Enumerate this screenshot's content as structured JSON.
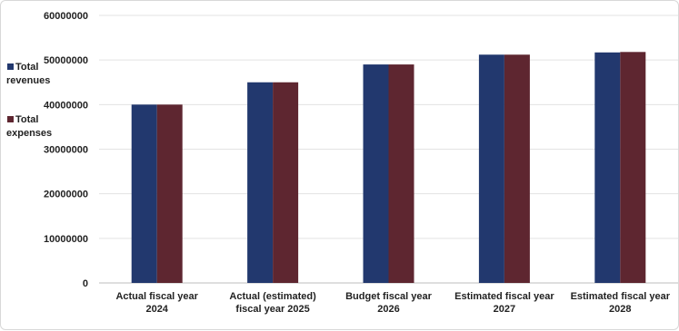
{
  "chart_data": {
    "type": "bar",
    "categories": [
      [
        "Actual fiscal year",
        "2024"
      ],
      [
        "Actual (estimated)",
        "fiscal year 2025"
      ],
      [
        "Budget fiscal year",
        "2026"
      ],
      [
        "Estimated fiscal year",
        "2027"
      ],
      [
        "Estimated fiscal year",
        "2028"
      ]
    ],
    "series": [
      {
        "name": "Total revenues",
        "legend_lines": [
          "Total",
          "revenues"
        ],
        "color": "#22386e",
        "values": [
          40000000,
          45000000,
          49000000,
          51200000,
          51700000
        ]
      },
      {
        "name": "Total expenses",
        "legend_lines": [
          "Total",
          "expenses"
        ],
        "color": "#5e2630",
        "values": [
          40000000,
          45000000,
          49000000,
          51200000,
          51800000
        ]
      }
    ],
    "ylim": [
      0,
      60000000
    ],
    "yticks": [
      0,
      10000000,
      20000000,
      30000000,
      40000000,
      50000000,
      60000000
    ],
    "grid": true,
    "legend": "left"
  }
}
